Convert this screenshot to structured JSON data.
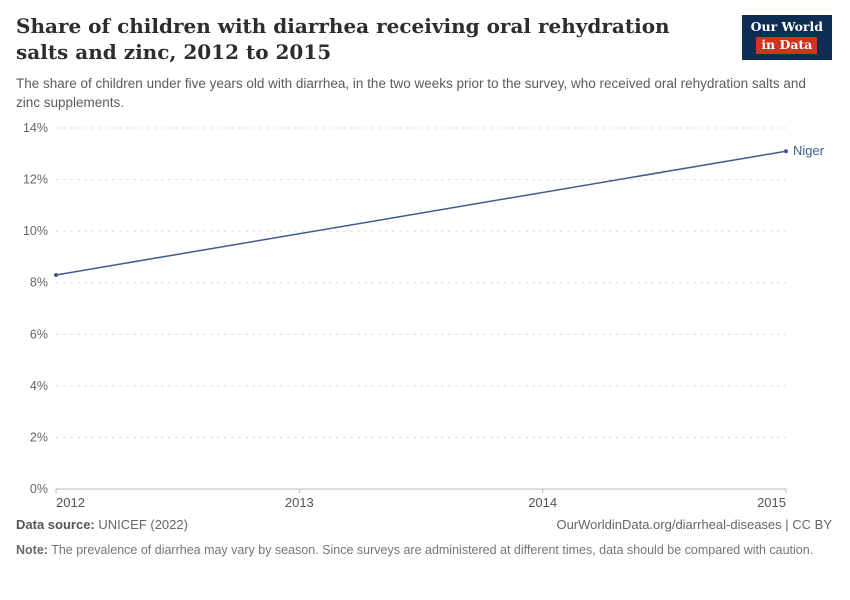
{
  "header": {
    "title": "Share of children with diarrhea receiving oral rehydration salts and zinc, 2012 to 2015",
    "subtitle": "The share of children under five years old with diarrhea, in the two weeks prior to the survey, who received oral rehydration salts and zinc supplements.",
    "logo": {
      "line1": "Our World",
      "line2": "in Data",
      "bg": "#0d2d52",
      "accent": "#d3321f"
    }
  },
  "chart_data": {
    "type": "line",
    "title": "Share of children with diarrhea receiving oral rehydration salts and zinc, 2012 to 2015",
    "xlabel": "",
    "ylabel": "",
    "xlim": [
      2012,
      2015
    ],
    "ylim": [
      0,
      14
    ],
    "x_ticks": [
      2012,
      2013,
      2014,
      2015
    ],
    "y_ticks": [
      0,
      2,
      4,
      6,
      8,
      10,
      12,
      14
    ],
    "y_tick_suffix": "%",
    "grid": "horizontal-dashed",
    "legend_position": "end-of-line",
    "series": [
      {
        "name": "Niger",
        "x": [
          2012,
          2015
        ],
        "values": [
          8.3,
          13.1
        ],
        "color": "#3d5c8c"
      }
    ]
  },
  "footer": {
    "source_label": "Data source:",
    "source": "UNICEF (2022)",
    "url": "OurWorldinData.org/diarrheal-diseases | CC BY",
    "note_label": "Note:",
    "note": "The prevalence of diarrhea may vary by season. Since surveys are administered at different times, data should be compared with caution."
  }
}
